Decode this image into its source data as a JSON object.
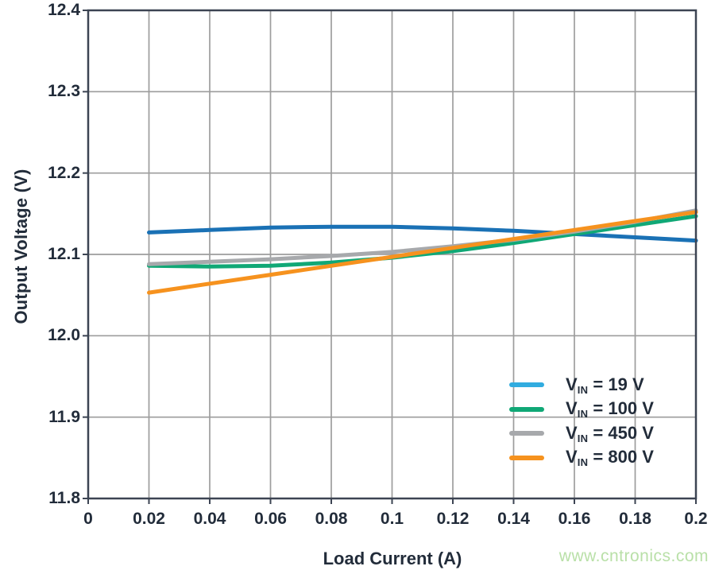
{
  "figure": {
    "y_axis_label": "Output Voltage (V)",
    "x_axis_label": "Load Current (A)",
    "watermark": "www.cntronics.com"
  },
  "colors": {
    "text": "#222c3a",
    "grid": "#9d9d9d",
    "frame": "#3c4453",
    "watermark": "#b9e0a8"
  },
  "legend": {
    "position": "lower right",
    "items": [
      {
        "prefix": "V",
        "sub": "IN",
        "rest": " = 19 V",
        "swatch_color": "#31ace0"
      },
      {
        "prefix": "V",
        "sub": "IN",
        "rest": " = 100 V",
        "swatch_color": "#10a876"
      },
      {
        "prefix": "V",
        "sub": "IN",
        "rest": " = 450 V",
        "swatch_color": "#a7a9ac"
      },
      {
        "prefix": "V",
        "sub": "IN",
        "rest": " = 800 V",
        "swatch_color": "#f6921e"
      }
    ]
  },
  "chart_data": {
    "type": "line",
    "title": "",
    "xlabel": "Load Current (A)",
    "ylabel": "Output Voltage (V)",
    "xlim": [
      0,
      0.2
    ],
    "ylim": [
      11.8,
      12.4
    ],
    "grid": true,
    "legend_position": "lower right",
    "x_ticks": [
      0,
      0.02,
      0.04,
      0.06,
      0.08,
      0.1,
      0.12,
      0.14,
      0.16,
      0.18,
      0.2
    ],
    "x_tick_labels": [
      "0",
      "0.02",
      "0.04",
      "0.06",
      "0.08",
      "0.1",
      "0.12",
      "0.14",
      "0.16",
      "0.18",
      "0.2"
    ],
    "y_ticks": [
      11.8,
      11.9,
      12.0,
      12.1,
      12.2,
      12.3,
      12.4
    ],
    "y_tick_labels": [
      "11.8",
      "11.9",
      "12.0",
      "12.1",
      "12.2",
      "12.3",
      "12.4"
    ],
    "x": [
      0.02,
      0.04,
      0.06,
      0.08,
      0.1,
      0.12,
      0.14,
      0.16,
      0.18,
      0.2
    ],
    "series": [
      {
        "name": "VIN = 19 V",
        "color": "#1a71b5",
        "values": [
          12.127,
          12.13,
          12.133,
          12.134,
          12.134,
          12.132,
          12.129,
          12.125,
          12.121,
          12.117
        ]
      },
      {
        "name": "VIN = 100 V",
        "color": "#10a876",
        "values": [
          12.086,
          12.085,
          12.086,
          12.09,
          12.096,
          12.104,
          12.114,
          12.125,
          12.136,
          12.147
        ]
      },
      {
        "name": "VIN = 450 V",
        "color": "#a7a9ac",
        "values": [
          12.088,
          12.091,
          12.094,
          12.098,
          12.103,
          12.11,
          12.118,
          12.128,
          12.14,
          12.154
        ]
      },
      {
        "name": "VIN = 800 V",
        "color": "#f6921e",
        "values": [
          12.053,
          12.064,
          12.075,
          12.086,
          12.097,
          12.108,
          12.119,
          12.13,
          12.141,
          12.152
        ]
      }
    ]
  }
}
